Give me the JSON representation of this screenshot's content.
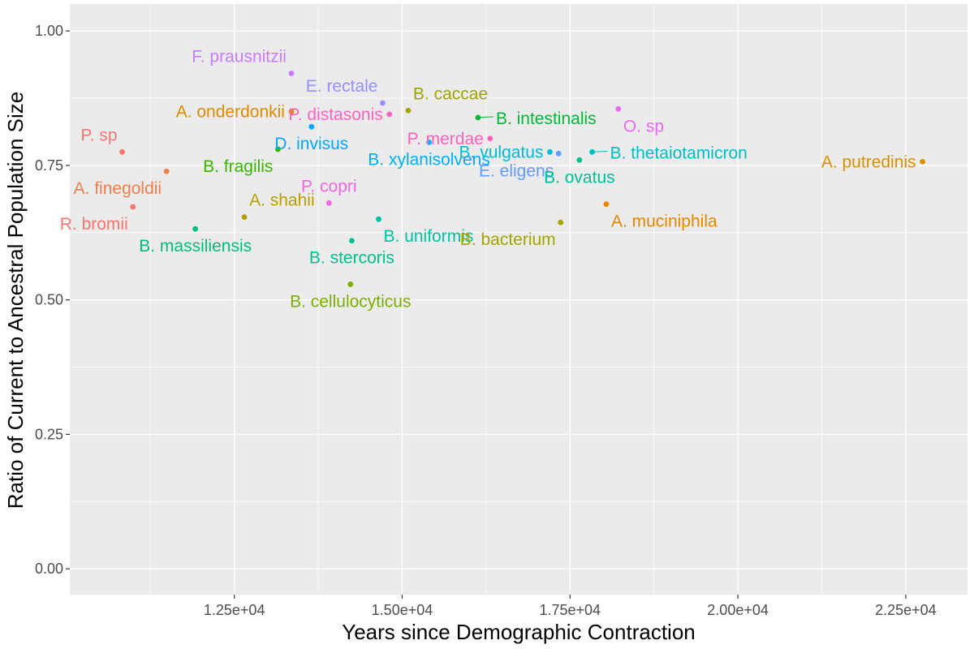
{
  "chart_data": {
    "type": "scatter",
    "xlabel": "Years since Demographic Contraction",
    "ylabel": "Ratio of Current to Ancestral Population Size",
    "xlim": [
      10050,
      23420
    ],
    "ylim": [
      -0.048,
      1.05
    ],
    "x_ticks": [
      {
        "value": 12500,
        "label": "1.25e+04"
      },
      {
        "value": 15000,
        "label": "1.50e+04"
      },
      {
        "value": 17500,
        "label": "1.75e+04"
      },
      {
        "value": 20000,
        "label": "2.00e+04"
      },
      {
        "value": 22500,
        "label": "2.25e+04"
      }
    ],
    "y_ticks": [
      {
        "value": 0.0,
        "label": "0.00"
      },
      {
        "value": 0.25,
        "label": "0.25"
      },
      {
        "value": 0.5,
        "label": "0.50"
      },
      {
        "value": 0.75,
        "label": "0.75"
      },
      {
        "value": 1.0,
        "label": "1.00"
      }
    ],
    "grid": true,
    "background": "#ebebeb",
    "points": [
      {
        "name": "P. sp",
        "x": 10830,
        "y": 0.775,
        "color": "#F8766D",
        "label_pos": "above-left"
      },
      {
        "name": "A. finegoldii",
        "x": 11490,
        "y": 0.739,
        "color": "#F07E4C",
        "label_pos": "below-left"
      },
      {
        "name": "R. bromii",
        "x": 10990,
        "y": 0.673,
        "color": "#F8766D",
        "label_pos": "below-left"
      },
      {
        "name": "B. massiliensis",
        "x": 11920,
        "y": 0.632,
        "color": "#00BF7D",
        "label_pos": "below"
      },
      {
        "name": "A. shahii",
        "x": 12650,
        "y": 0.654,
        "color": "#B79F00",
        "label_pos": "above-right"
      },
      {
        "name": "F. prausnitzii",
        "x": 13350,
        "y": 0.921,
        "color": "#C77CFF",
        "label_pos": "above-left"
      },
      {
        "name": "A. onderdonkii",
        "x": 13350,
        "y": 0.85,
        "color": "#DE8C00",
        "label_pos": "left"
      },
      {
        "name": "D. invisus",
        "x": 13650,
        "y": 0.822,
        "color": "#00A9FF",
        "label_pos": "below"
      },
      {
        "name": "B. fragilis",
        "x": 13150,
        "y": 0.78,
        "color": "#39B600",
        "label_pos": "below-left"
      },
      {
        "name": "P. distasonis",
        "x": 14810,
        "y": 0.845,
        "color": "#FF61C3",
        "label_pos": "left"
      },
      {
        "name": "P. copri",
        "x": 13910,
        "y": 0.68,
        "color": "#F564E3",
        "label_pos": "above"
      },
      {
        "name": "E. rectale",
        "x": 14710,
        "y": 0.866,
        "color": "#9590FF",
        "label_pos": "above-left"
      },
      {
        "name": "B. caccae",
        "x": 15090,
        "y": 0.852,
        "color": "#9CA700",
        "label_pos": "above-right"
      },
      {
        "name": "B. xylanisolvens",
        "x": 15400,
        "y": 0.793,
        "color": "#00B0F6",
        "label_pos": "below"
      },
      {
        "name": "B. stercoris",
        "x": 14250,
        "y": 0.61,
        "color": "#00C08B",
        "label_pos": "below"
      },
      {
        "name": "B. uniformis",
        "x": 14650,
        "y": 0.65,
        "color": "#00C1A3",
        "label_pos": "below-right"
      },
      {
        "name": "B. cellulocyticus",
        "x": 14230,
        "y": 0.529,
        "color": "#7CAE00",
        "label_pos": "below"
      },
      {
        "name": "P. merdae",
        "x": 16310,
        "y": 0.8,
        "color": "#FF62BC",
        "label_pos": "left"
      },
      {
        "name": "B. intestinalis",
        "x": 16130,
        "y": 0.839,
        "color": "#00BA38",
        "label_pos": "right"
      },
      {
        "name": "B. vulgatus",
        "x": 17200,
        "y": 0.775,
        "color": "#00BCD8",
        "label_pos": "left"
      },
      {
        "name": "E. eligens",
        "x": 17330,
        "y": 0.772,
        "color": "#619CFF",
        "label_pos": "below-left"
      },
      {
        "name": "B. thetaiotamicron",
        "x": 17830,
        "y": 0.775,
        "color": "#00BFC4",
        "label_pos": "right"
      },
      {
        "name": "B. ovatus",
        "x": 17640,
        "y": 0.76,
        "color": "#00C094",
        "label_pos": "below"
      },
      {
        "name": "O. sp",
        "x": 18220,
        "y": 0.855,
        "color": "#E76BF3",
        "label_pos": "below-right"
      },
      {
        "name": "A. muciniphila",
        "x": 18040,
        "y": 0.678,
        "color": "#E58700",
        "label_pos": "below-right"
      },
      {
        "name": "B. bacterium",
        "x": 17360,
        "y": 0.644,
        "color": "#A3A500",
        "label_pos": "below-left"
      },
      {
        "name": "A. putredinis",
        "x": 22750,
        "y": 0.757,
        "color": "#D89000",
        "label_pos": "left"
      }
    ]
  }
}
